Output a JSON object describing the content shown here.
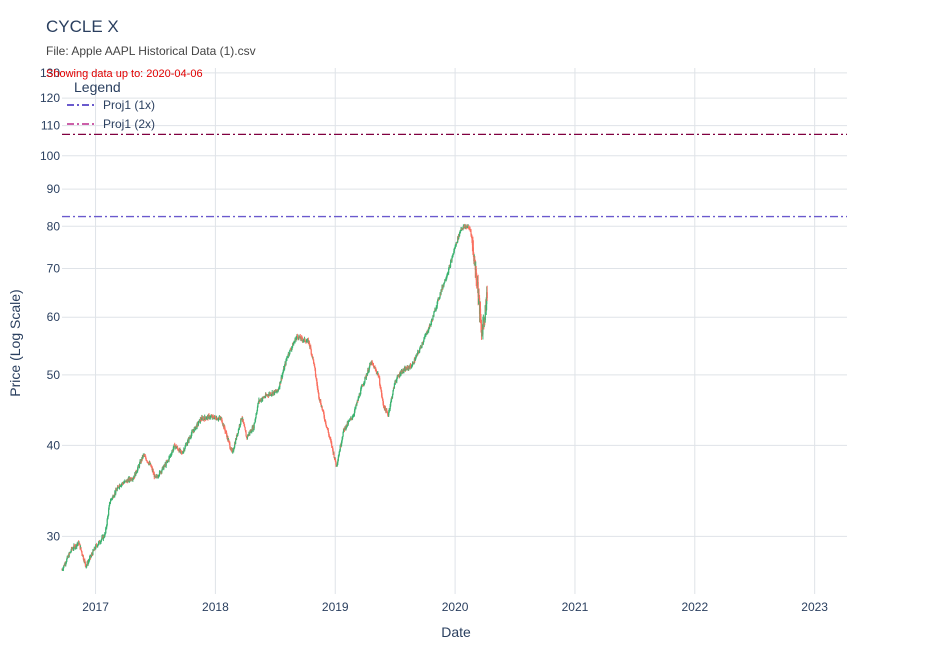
{
  "header": {
    "title": "CYCLE X",
    "subtitle": "File: Apple AAPL Historical Data (1).csv",
    "note": "Showing data up to: 2020-04-06"
  },
  "legend": {
    "title": "Legend",
    "items": [
      {
        "label": "Proj1 (1x)",
        "color": "#6a5acd"
      },
      {
        "label": "Proj1 (2x)",
        "color": "#cc5fa8"
      }
    ]
  },
  "chart_data": {
    "type": "candlestick",
    "title": "CYCLE X",
    "xlabel": "Date",
    "ylabel": "Price (Log Scale)",
    "y_scale": "log",
    "ylim": [
      25,
      132
    ],
    "xlim": [
      2016.72,
      2023.27
    ],
    "x_ticks": [
      "2017",
      "2018",
      "2019",
      "2020",
      "2021",
      "2022",
      "2023"
    ],
    "y_ticks": [
      30,
      40,
      50,
      60,
      70,
      80,
      90,
      100,
      110,
      120,
      130
    ],
    "up_color": "#3cb371",
    "down_color": "#fa7060",
    "hlines": [
      {
        "name": "Proj1 (1x)",
        "value": 82.5,
        "color": "#6a5acd",
        "dash": "dashdot"
      },
      {
        "name": "Proj1 (2x)",
        "value": 107.0,
        "color": "#800040",
        "dash": "dashdot"
      }
    ],
    "price_path": [
      [
        2016.72,
        27.0
      ],
      [
        2016.8,
        28.8
      ],
      [
        2016.86,
        29.4
      ],
      [
        2016.92,
        27.3
      ],
      [
        2017.0,
        29.0
      ],
      [
        2017.08,
        30.2
      ],
      [
        2017.12,
        33.5
      ],
      [
        2017.2,
        35.3
      ],
      [
        2017.32,
        36.2
      ],
      [
        2017.4,
        38.8
      ],
      [
        2017.46,
        37.5
      ],
      [
        2017.5,
        36.0
      ],
      [
        2017.6,
        38.0
      ],
      [
        2017.66,
        40.0
      ],
      [
        2017.72,
        39.0
      ],
      [
        2017.8,
        41.5
      ],
      [
        2017.88,
        43.5
      ],
      [
        2017.95,
        43.8
      ],
      [
        2018.05,
        43.5
      ],
      [
        2018.1,
        41.0
      ],
      [
        2018.14,
        39.0
      ],
      [
        2018.22,
        43.8
      ],
      [
        2018.26,
        41.0
      ],
      [
        2018.32,
        42.5
      ],
      [
        2018.36,
        46.0
      ],
      [
        2018.44,
        47.0
      ],
      [
        2018.52,
        47.5
      ],
      [
        2018.6,
        53.0
      ],
      [
        2018.68,
        56.5
      ],
      [
        2018.72,
        56.0
      ],
      [
        2018.78,
        55.5
      ],
      [
        2018.82,
        52.0
      ],
      [
        2018.86,
        47.0
      ],
      [
        2018.92,
        43.0
      ],
      [
        2018.97,
        40.0
      ],
      [
        2019.01,
        37.5
      ],
      [
        2019.07,
        42.0
      ],
      [
        2019.15,
        44.0
      ],
      [
        2019.22,
        48.0
      ],
      [
        2019.3,
        52.0
      ],
      [
        2019.36,
        50.0
      ],
      [
        2019.4,
        45.5
      ],
      [
        2019.44,
        44.0
      ],
      [
        2019.5,
        49.0
      ],
      [
        2019.55,
        50.5
      ],
      [
        2019.64,
        51.5
      ],
      [
        2019.7,
        54.0
      ],
      [
        2019.8,
        59.0
      ],
      [
        2019.88,
        65.0
      ],
      [
        2019.95,
        70.0
      ],
      [
        2020.0,
        75.0
      ],
      [
        2020.05,
        79.5
      ],
      [
        2020.1,
        80.0
      ],
      [
        2020.13,
        79.0
      ],
      [
        2020.16,
        72.0
      ],
      [
        2020.19,
        66.0
      ],
      [
        2020.22,
        57.0
      ],
      [
        2020.25,
        61.0
      ],
      [
        2020.27,
        65.5
      ]
    ]
  }
}
